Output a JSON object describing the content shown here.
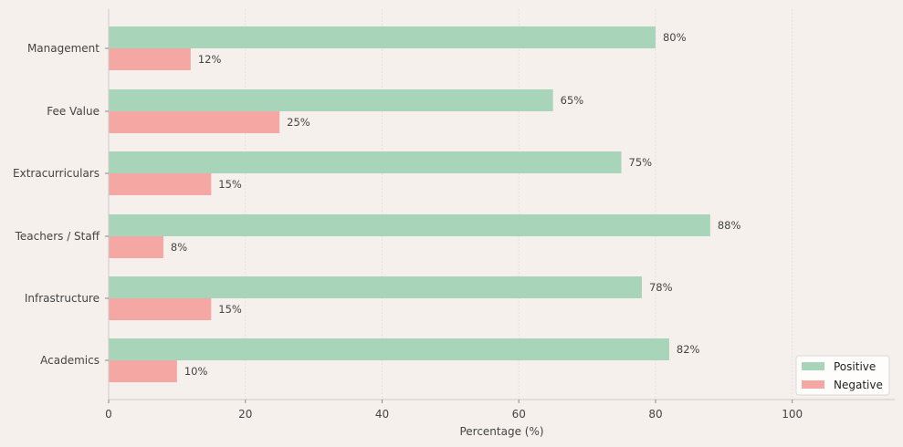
{
  "chart_data": {
    "type": "bar",
    "orientation": "horizontal",
    "title": "",
    "xlabel": "Percentage (%)",
    "ylabel": "",
    "xlim": [
      0,
      115
    ],
    "xticks": [
      0,
      20,
      40,
      60,
      80,
      100
    ],
    "grid": true,
    "categories": [
      "Academics",
      "Infrastructure",
      "Teachers / Staff",
      "Extracurriculars",
      "Fee Value",
      "Management"
    ],
    "series": [
      {
        "name": "Positive",
        "color": "#a8d5ba",
        "values": [
          82,
          78,
          88,
          75,
          65,
          80
        ]
      },
      {
        "name": "Negative",
        "color": "#f5a7a3",
        "values": [
          10,
          15,
          8,
          15,
          25,
          12
        ]
      }
    ],
    "label_suffix": "%",
    "legend": {
      "placement": "bottom-right",
      "entries": [
        "Positive",
        "Negative"
      ]
    }
  },
  "colors": {
    "background": "#f5f0eb",
    "axis": "#cccccc",
    "grid": "#e2ddd8",
    "text": "#444444"
  }
}
